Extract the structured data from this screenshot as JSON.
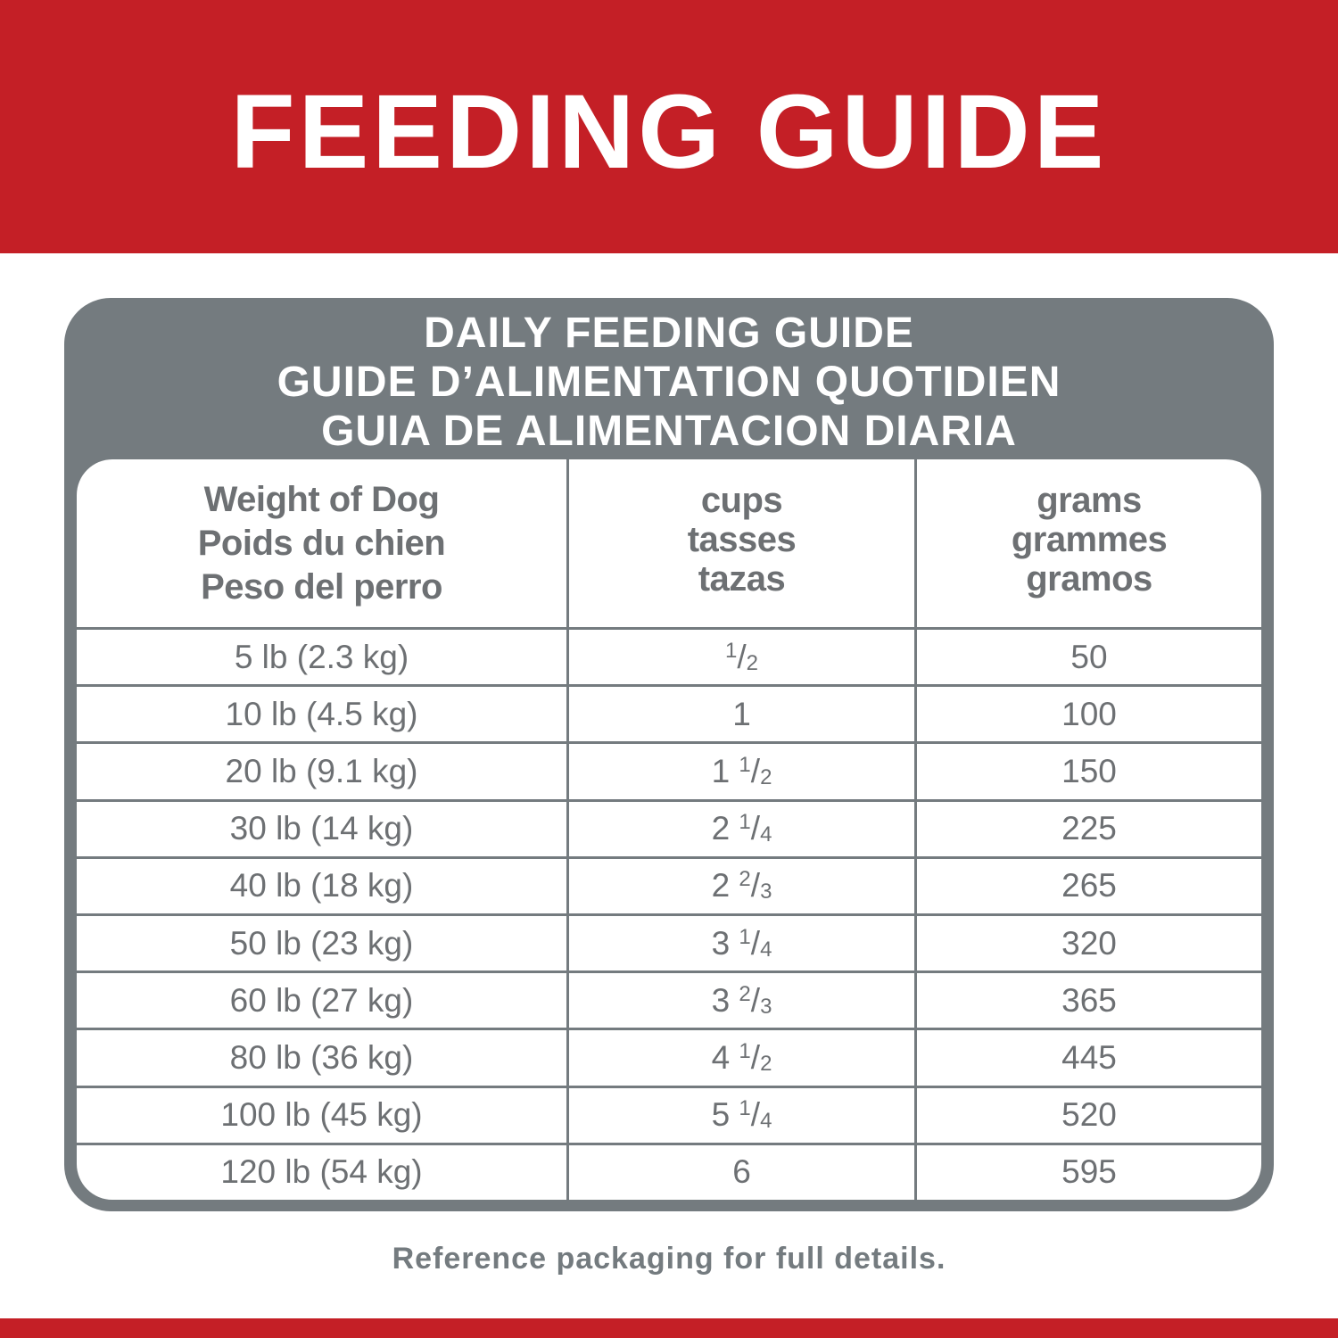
{
  "header": {
    "title": "FEEDING GUIDE"
  },
  "table": {
    "title": [
      "DAILY FEEDING GUIDE",
      "GUIDE D’ALIMENTATION QUOTIDIEN",
      "GUIA DE ALIMENTACION DIARIA"
    ],
    "columns": [
      [
        "Weight of Dog",
        "Poids du chien",
        "Peso del perro"
      ],
      [
        "cups",
        "tasses",
        "tazas"
      ],
      [
        "grams",
        "grammes",
        "gramos"
      ]
    ],
    "rows": [
      [
        "5 lb (2.3 kg)",
        "1/2",
        "50"
      ],
      [
        "10 lb (4.5 kg)",
        "1",
        "100"
      ],
      [
        "20 lb (9.1 kg)",
        "1 1/2",
        "150"
      ],
      [
        "30 lb (14 kg)",
        "2 1/4",
        "225"
      ],
      [
        "40 lb (18 kg)",
        "2 2/3",
        "265"
      ],
      [
        "50 lb (23 kg)",
        "3 1/4",
        "320"
      ],
      [
        "60 lb (27 kg)",
        "3 2/3",
        "365"
      ],
      [
        "80 lb (36 kg)",
        "4 1/2",
        "445"
      ],
      [
        "100 lb (45 kg)",
        "5 1/4",
        "520"
      ],
      [
        "120 lb (54 kg)",
        "6",
        "595"
      ]
    ]
  },
  "footer": "Reference packaging for full details."
}
